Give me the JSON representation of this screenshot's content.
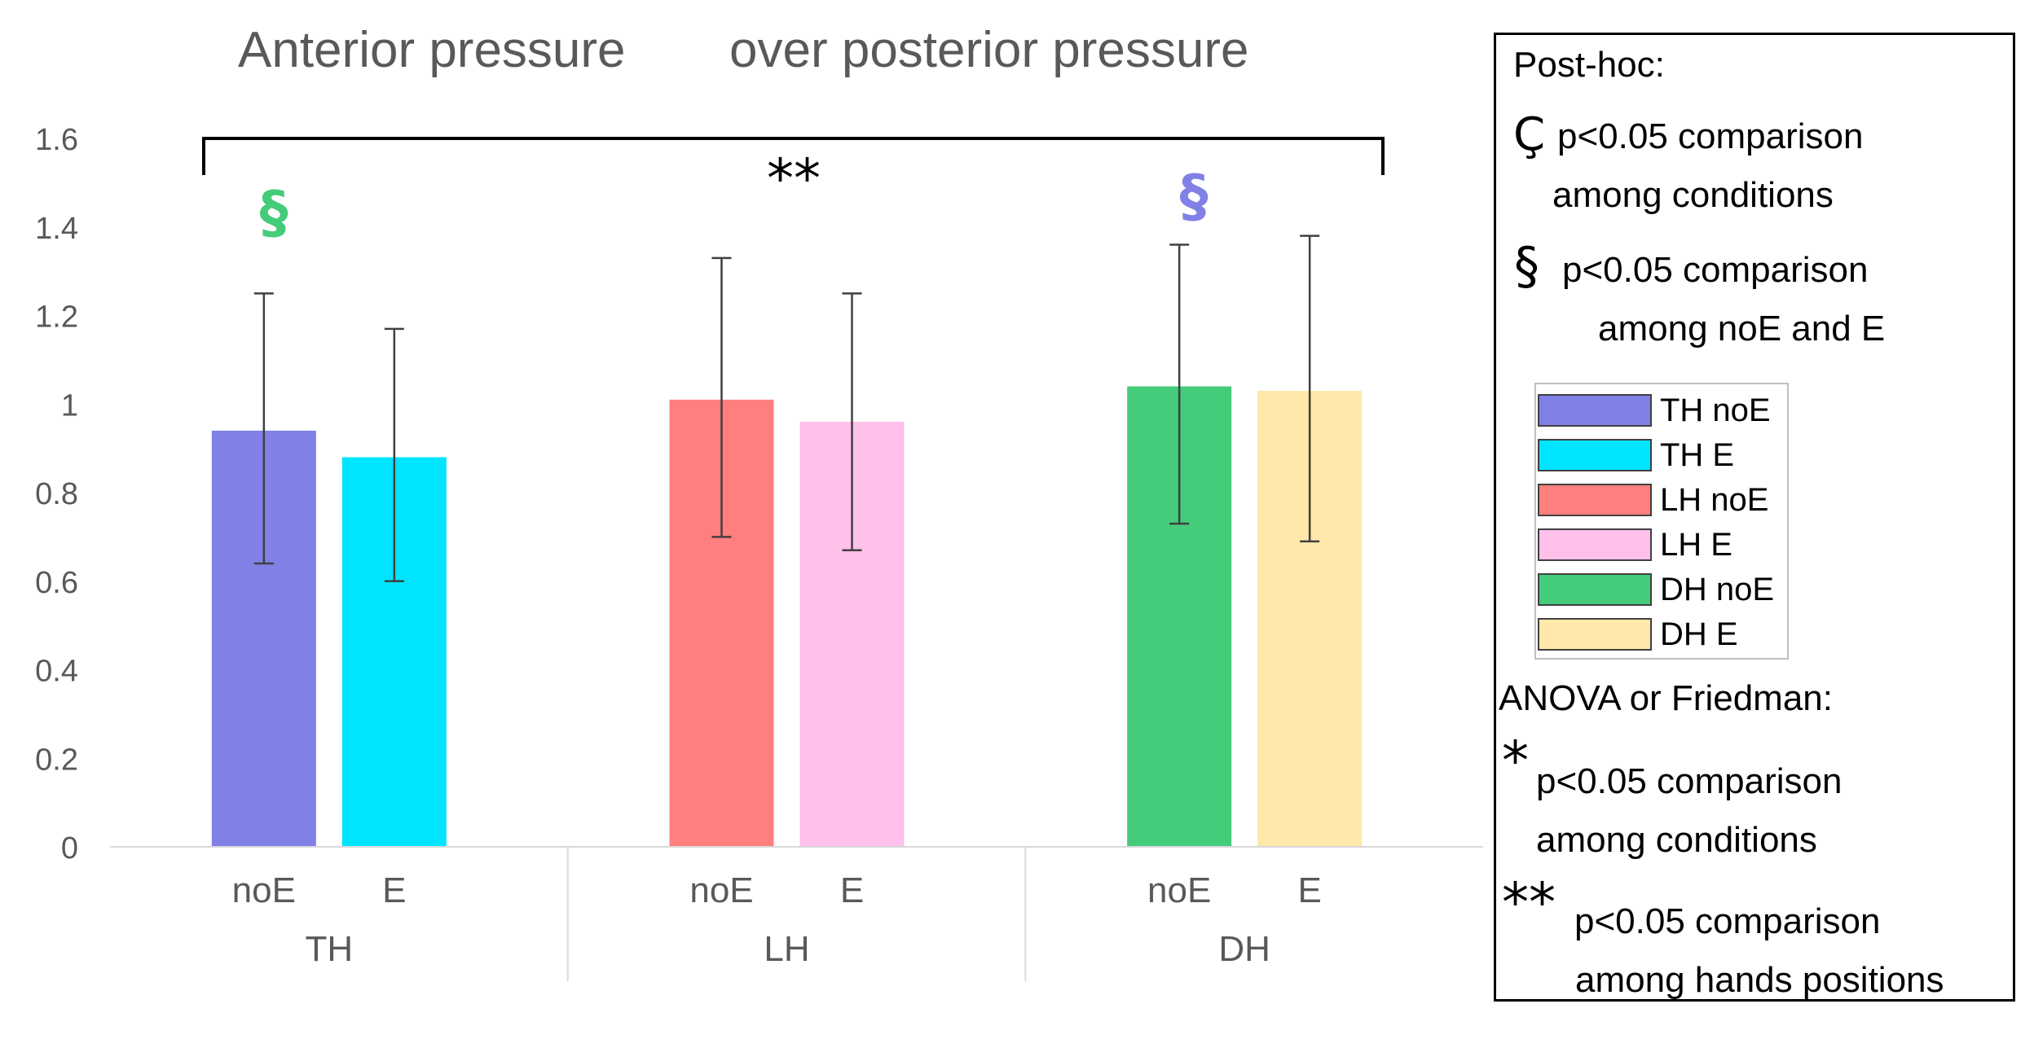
{
  "chart_data": {
    "type": "bar",
    "title_part1": "Anterior pressure",
    "title_part2": "over posterior pressure",
    "ylim": [
      0,
      1.6
    ],
    "yticks": [
      "0",
      "0.2",
      "0.4",
      "0.6",
      "0.8",
      "1",
      "1.2",
      "1.4",
      "1.6"
    ],
    "groups": [
      {
        "name": "TH",
        "bars": [
          {
            "label": "noE",
            "series": "TH noE",
            "value": 0.94,
            "err_low": 0.64,
            "err_high": 1.25,
            "color": "#8080e6"
          },
          {
            "label": "E",
            "series": "TH E",
            "value": 0.88,
            "err_low": 0.6,
            "err_high": 1.17,
            "color": "#00e5ff"
          }
        ]
      },
      {
        "name": "LH",
        "bars": [
          {
            "label": "noE",
            "series": "LH noE",
            "value": 1.01,
            "err_low": 0.7,
            "err_high": 1.33,
            "color": "#ff7f7f"
          },
          {
            "label": "E",
            "series": "LH E",
            "value": 0.96,
            "err_low": 0.67,
            "err_high": 1.25,
            "color": "#ffc0ea"
          }
        ]
      },
      {
        "name": "DH",
        "bars": [
          {
            "label": "noE",
            "series": "DH noE",
            "value": 1.04,
            "err_low": 0.73,
            "err_high": 1.36,
            "color": "#44cc7a"
          },
          {
            "label": "E",
            "series": "DH E",
            "value": 1.03,
            "err_low": 0.69,
            "err_high": 1.38,
            "color": "#ffe8aa"
          }
        ]
      }
    ],
    "annotations": {
      "bracket_label": "**",
      "th_marker": "§",
      "th_marker_color": "#44cc7a",
      "dh_marker": "§",
      "dh_marker_color": "#8080e6"
    }
  },
  "legend": {
    "posthoc_title": "Post-hoc:",
    "cedilla_symbol": "Ç",
    "cedilla_line1": "p<0.05 comparison",
    "cedilla_line2": "among conditions",
    "section_symbol": "§",
    "section_line1": "p<0.05 comparison",
    "section_line2": "among noE and E",
    "series": [
      {
        "label": "TH noE",
        "color": "#8080e6"
      },
      {
        "label": "TH E",
        "color": "#00e5ff"
      },
      {
        "label": "LH noE",
        "color": "#ff7f7f"
      },
      {
        "label": "LH E",
        "color": "#ffc0ea"
      },
      {
        "label": "DH noE",
        "color": "#44cc7a"
      },
      {
        "label": "DH E",
        "color": "#ffe8aa"
      }
    ],
    "anova_title": "ANOVA or Friedman:",
    "single_star": "*",
    "single_line1": "p<0.05 comparison",
    "single_line2": "among conditions",
    "double_star": "**",
    "double_line1": "p<0.05 comparison",
    "double_line2": "among hands positions"
  }
}
